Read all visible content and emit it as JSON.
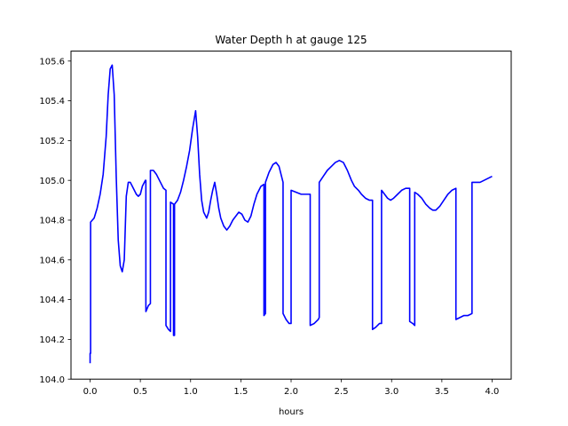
{
  "chart_data": {
    "type": "line",
    "title": "Water Depth h at gauge 125",
    "xlabel": "hours",
    "ylabel": "",
    "xlim": [
      -0.19,
      4.19
    ],
    "ylim": [
      104.0,
      105.65
    ],
    "x_ticks": [
      0.0,
      0.5,
      1.0,
      1.5,
      2.0,
      2.5,
      3.0,
      3.5,
      4.0
    ],
    "x_tick_labels": [
      "0.0",
      "0.5",
      "1.0",
      "1.5",
      "2.0",
      "2.5",
      "3.0",
      "3.5",
      "4.0"
    ],
    "y_ticks": [
      104.0,
      104.2,
      104.4,
      104.6,
      104.8,
      105.0,
      105.2,
      105.4,
      105.6
    ],
    "y_tick_labels": [
      "104.0",
      "104.2",
      "104.4",
      "104.6",
      "104.8",
      "105.0",
      "105.2",
      "105.4",
      "105.6"
    ],
    "grid": false,
    "legend": "none",
    "series": [
      {
        "color": "#0000ff",
        "points": [
          [
            0.0,
            104.08
          ],
          [
            0.0,
            104.13
          ],
          [
            0.005,
            104.13
          ],
          [
            0.005,
            104.79
          ],
          [
            0.04,
            104.81
          ],
          [
            0.07,
            104.86
          ],
          [
            0.1,
            104.93
          ],
          [
            0.13,
            105.03
          ],
          [
            0.16,
            105.22
          ],
          [
            0.18,
            105.43
          ],
          [
            0.2,
            105.56
          ],
          [
            0.22,
            105.58
          ],
          [
            0.24,
            105.43
          ],
          [
            0.26,
            105.02
          ],
          [
            0.28,
            104.7
          ],
          [
            0.3,
            104.57
          ],
          [
            0.32,
            104.54
          ],
          [
            0.34,
            104.6
          ],
          [
            0.36,
            104.92
          ],
          [
            0.38,
            104.99
          ],
          [
            0.4,
            104.99
          ],
          [
            0.43,
            104.96
          ],
          [
            0.46,
            104.93
          ],
          [
            0.48,
            104.92
          ],
          [
            0.5,
            104.93
          ],
          [
            0.52,
            104.97
          ],
          [
            0.55,
            105.0
          ],
          [
            0.555,
            105.0
          ],
          [
            0.555,
            104.34
          ],
          [
            0.58,
            104.37
          ],
          [
            0.6,
            104.38
          ],
          [
            0.6,
            105.05
          ],
          [
            0.63,
            105.05
          ],
          [
            0.66,
            105.03
          ],
          [
            0.7,
            104.99
          ],
          [
            0.73,
            104.96
          ],
          [
            0.755,
            104.95
          ],
          [
            0.755,
            104.27
          ],
          [
            0.78,
            104.25
          ],
          [
            0.8,
            104.24
          ],
          [
            0.8,
            104.89
          ],
          [
            0.83,
            104.88
          ],
          [
            0.83,
            104.22
          ],
          [
            0.84,
            104.22
          ],
          [
            0.84,
            104.88
          ],
          [
            0.87,
            104.9
          ],
          [
            0.9,
            104.94
          ],
          [
            0.93,
            105.0
          ],
          [
            0.96,
            105.07
          ],
          [
            0.99,
            105.15
          ],
          [
            1.02,
            105.26
          ],
          [
            1.05,
            105.35
          ],
          [
            1.07,
            105.22
          ],
          [
            1.09,
            105.03
          ],
          [
            1.11,
            104.9
          ],
          [
            1.13,
            104.84
          ],
          [
            1.16,
            104.81
          ],
          [
            1.18,
            104.84
          ],
          [
            1.2,
            104.9
          ],
          [
            1.22,
            104.95
          ],
          [
            1.24,
            104.99
          ],
          [
            1.26,
            104.93
          ],
          [
            1.28,
            104.86
          ],
          [
            1.3,
            104.81
          ],
          [
            1.33,
            104.77
          ],
          [
            1.36,
            104.75
          ],
          [
            1.39,
            104.77
          ],
          [
            1.42,
            104.8
          ],
          [
            1.45,
            104.82
          ],
          [
            1.48,
            104.84
          ],
          [
            1.51,
            104.83
          ],
          [
            1.54,
            104.8
          ],
          [
            1.57,
            104.79
          ],
          [
            1.6,
            104.82
          ],
          [
            1.63,
            104.88
          ],
          [
            1.66,
            104.93
          ],
          [
            1.7,
            104.97
          ],
          [
            1.73,
            104.98
          ],
          [
            1.73,
            104.32
          ],
          [
            1.745,
            104.33
          ],
          [
            1.745,
            104.99
          ],
          [
            1.78,
            105.04
          ],
          [
            1.82,
            105.08
          ],
          [
            1.85,
            105.09
          ],
          [
            1.88,
            105.07
          ],
          [
            1.92,
            104.99
          ],
          [
            1.92,
            104.33
          ],
          [
            1.95,
            104.3
          ],
          [
            1.98,
            104.28
          ],
          [
            2.0,
            104.28
          ],
          [
            2.0,
            104.95
          ],
          [
            2.05,
            104.94
          ],
          [
            2.1,
            104.93
          ],
          [
            2.15,
            104.93
          ],
          [
            2.19,
            104.93
          ],
          [
            2.19,
            104.27
          ],
          [
            2.23,
            104.28
          ],
          [
            2.27,
            104.3
          ],
          [
            2.28,
            104.31
          ],
          [
            2.28,
            104.99
          ],
          [
            2.32,
            105.02
          ],
          [
            2.36,
            105.05
          ],
          [
            2.4,
            105.07
          ],
          [
            2.44,
            105.09
          ],
          [
            2.48,
            105.1
          ],
          [
            2.52,
            105.09
          ],
          [
            2.56,
            105.05
          ],
          [
            2.6,
            105.0
          ],
          [
            2.63,
            104.97
          ],
          [
            2.67,
            104.95
          ],
          [
            2.7,
            104.93
          ],
          [
            2.74,
            104.91
          ],
          [
            2.78,
            104.9
          ],
          [
            2.81,
            104.9
          ],
          [
            2.81,
            104.25
          ],
          [
            2.84,
            104.26
          ],
          [
            2.88,
            104.28
          ],
          [
            2.9,
            104.28
          ],
          [
            2.9,
            104.95
          ],
          [
            2.93,
            104.93
          ],
          [
            2.96,
            104.91
          ],
          [
            2.99,
            104.9
          ],
          [
            3.02,
            104.91
          ],
          [
            3.06,
            104.93
          ],
          [
            3.1,
            104.95
          ],
          [
            3.14,
            104.96
          ],
          [
            3.17,
            104.96
          ],
          [
            3.18,
            104.96
          ],
          [
            3.18,
            104.29
          ],
          [
            3.21,
            104.28
          ],
          [
            3.23,
            104.27
          ],
          [
            3.23,
            104.94
          ],
          [
            3.26,
            104.93
          ],
          [
            3.3,
            104.91
          ],
          [
            3.34,
            104.88
          ],
          [
            3.38,
            104.86
          ],
          [
            3.41,
            104.85
          ],
          [
            3.44,
            104.85
          ],
          [
            3.48,
            104.87
          ],
          [
            3.52,
            104.9
          ],
          [
            3.56,
            104.93
          ],
          [
            3.6,
            104.95
          ],
          [
            3.64,
            104.96
          ],
          [
            3.64,
            104.3
          ],
          [
            3.68,
            104.31
          ],
          [
            3.72,
            104.32
          ],
          [
            3.76,
            104.32
          ],
          [
            3.8,
            104.33
          ],
          [
            3.8,
            104.99
          ],
          [
            3.84,
            104.99
          ],
          [
            3.88,
            104.99
          ],
          [
            3.92,
            105.0
          ],
          [
            3.96,
            105.01
          ],
          [
            4.0,
            105.02
          ]
        ]
      }
    ]
  }
}
